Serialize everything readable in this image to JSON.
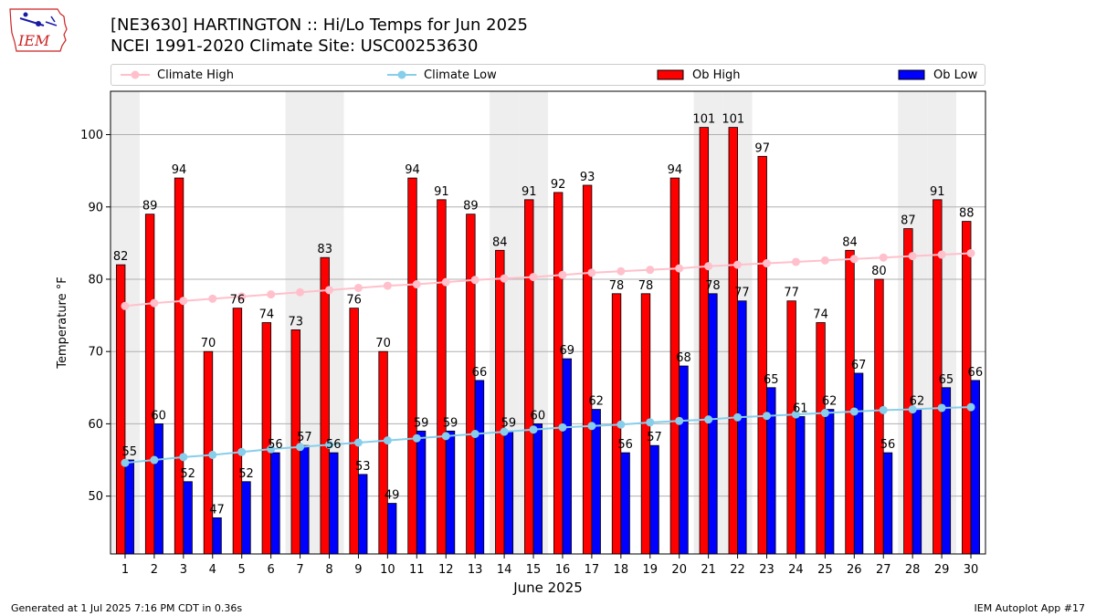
{
  "header": {
    "title_line1": "[NE3630] HARTINGTON :: Hi/Lo Temps for Jun 2025",
    "title_line2": "NCEI 1991-2020 Climate Site: USC00253630"
  },
  "logo": {
    "text": "IEM",
    "color": "#cc2222"
  },
  "footer": {
    "left": "Generated at 1 Jul 2025 7:16 PM CDT in 0.36s",
    "right": "IEM Autoplot App #17"
  },
  "chart_data": {
    "type": "bar",
    "xlabel": "June 2025",
    "ylabel": "Temperature °F",
    "ylim": [
      42,
      106
    ],
    "yticks": [
      50,
      60,
      70,
      80,
      90,
      100
    ],
    "grid": true,
    "legend_position": "top",
    "categories": [
      "1",
      "2",
      "3",
      "4",
      "5",
      "6",
      "7",
      "8",
      "9",
      "10",
      "11",
      "12",
      "13",
      "14",
      "15",
      "16",
      "17",
      "18",
      "19",
      "20",
      "21",
      "22",
      "23",
      "24",
      "25",
      "26",
      "27",
      "28",
      "29",
      "30"
    ],
    "weekend_days": [
      1,
      7,
      8,
      14,
      15,
      21,
      22,
      28,
      29
    ],
    "series": [
      {
        "name": "Ob High",
        "kind": "bar",
        "color": "#ff0000",
        "values": [
          82,
          89,
          94,
          70,
          76,
          74,
          73,
          83,
          76,
          70,
          94,
          91,
          89,
          84,
          91,
          92,
          93,
          78,
          78,
          94,
          101,
          101,
          97,
          77,
          74,
          84,
          80,
          87,
          91,
          88
        ]
      },
      {
        "name": "Ob Low",
        "kind": "bar",
        "color": "#0000ff",
        "values": [
          55,
          60,
          52,
          47,
          52,
          56,
          57,
          56,
          53,
          49,
          59,
          59,
          66,
          59,
          60,
          69,
          62,
          56,
          57,
          68,
          78,
          77,
          65,
          61,
          62,
          67,
          56,
          62,
          65,
          66
        ]
      },
      {
        "name": "Climate High",
        "kind": "line",
        "color": "#ffc0cb",
        "values": [
          76.3,
          76.7,
          77.0,
          77.3,
          77.6,
          77.9,
          78.2,
          78.5,
          78.8,
          79.1,
          79.3,
          79.6,
          79.9,
          80.1,
          80.3,
          80.6,
          80.9,
          81.1,
          81.3,
          81.5,
          81.8,
          82.0,
          82.2,
          82.4,
          82.6,
          82.8,
          83.0,
          83.2,
          83.4,
          83.6
        ]
      },
      {
        "name": "Climate Low",
        "kind": "line",
        "color": "#87ceeb",
        "values": [
          54.6,
          55.0,
          55.4,
          55.7,
          56.1,
          56.5,
          56.8,
          57.1,
          57.4,
          57.7,
          58.0,
          58.3,
          58.6,
          58.9,
          59.2,
          59.5,
          59.7,
          59.9,
          60.2,
          60.4,
          60.6,
          60.9,
          61.1,
          61.3,
          61.5,
          61.7,
          61.9,
          62.0,
          62.2,
          62.3
        ]
      }
    ]
  }
}
